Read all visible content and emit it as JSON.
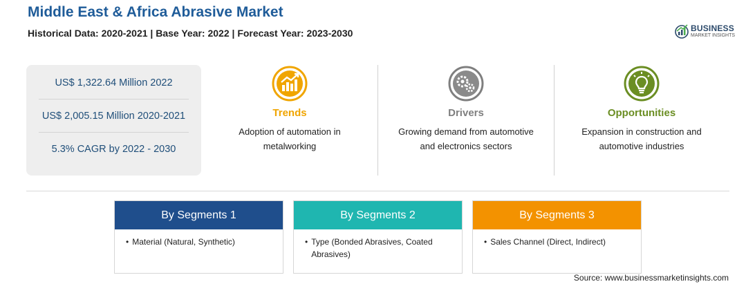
{
  "header": {
    "title": "Middle East & Africa Abrasive Market",
    "subtitle": "Historical Data: 2020-2021 | Base Year: 2022 | Forecast Year: 2023-2030"
  },
  "logo": {
    "name": "BUSINESS",
    "tagline": "MARKET INSIGHTS",
    "icon": "bar-growth-logo-icon"
  },
  "stats": [
    "US$ 1,322.64 Million 2022",
    "US$ 2,005.15 Million 2020-2021",
    "5.3% CAGR by 2022 - 2030"
  ],
  "cards": [
    {
      "label": "Trends",
      "description": "Adoption of automation in metalworking",
      "color": "#f0a500",
      "icon": "rising-chart-icon"
    },
    {
      "label": "Drivers",
      "description": "Growing demand from automotive and electronics sectors",
      "color": "#7f7f7f",
      "icon": "gears-icon"
    },
    {
      "label": "Opportunities",
      "description": "Expansion in construction and automotive industries",
      "color": "#6b8e23",
      "icon": "lightbulb-icon"
    }
  ],
  "segments": [
    {
      "title": "By Segments 1",
      "color": "#1f4e8c",
      "item": "Material (Natural, Synthetic)"
    },
    {
      "title": "By Segments 2",
      "color": "#1fb6b0",
      "item": "Type (Bonded Abrasives, Coated Abrasives)"
    },
    {
      "title": "By Segments 3",
      "color": "#f39200",
      "item": "Sales Channel (Direct, Indirect)"
    }
  ],
  "source": "Source: www.businessmarketinsights.com"
}
